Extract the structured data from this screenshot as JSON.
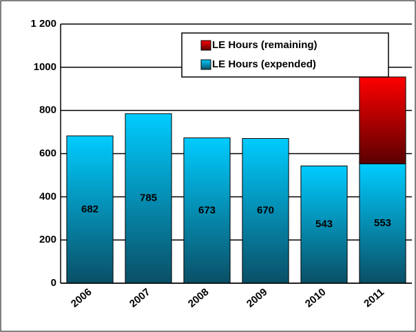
{
  "chart_data": {
    "type": "stacked-bar",
    "categories": [
      "2006",
      "2007",
      "2008",
      "2009",
      "2010",
      "2011"
    ],
    "series": [
      {
        "name": "LE Hours (expended)",
        "color": "#00ccff",
        "values": [
          682,
          785,
          673,
          670,
          543,
          553
        ]
      },
      {
        "name": "LE Hours (remaining)",
        "color": "#ff0000",
        "values": [
          null,
          null,
          null,
          null,
          null,
          402
        ]
      }
    ],
    "data_labels_series": 0,
    "ylim": [
      0,
      1200
    ],
    "yticks": [
      0,
      200,
      400,
      600,
      800,
      1000,
      {
        "value": 1200,
        "label": "1 200"
      }
    ],
    "grid": true,
    "legend": "top-right"
  }
}
